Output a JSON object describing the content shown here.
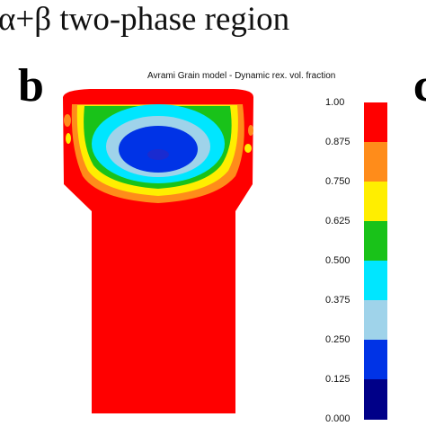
{
  "heading": "α+β two-phase region",
  "panel_label": "b",
  "next_panel_label": "c",
  "model_title": "Avrami Grain model - Dynamic rex. vol. fraction",
  "legend": {
    "ticks": [
      "1.00",
      "0.875",
      "0.750",
      "0.625",
      "0.500",
      "0.375",
      "0.250",
      "0.125",
      "0.000"
    ],
    "bands": [
      {
        "from": 0.875,
        "to": 1.0,
        "color": "#ff0000"
      },
      {
        "from": 0.75,
        "to": 0.875,
        "color": "#ff8c1a"
      },
      {
        "from": 0.625,
        "to": 0.75,
        "color": "#ffee00"
      },
      {
        "from": 0.5,
        "to": 0.625,
        "color": "#19c219"
      },
      {
        "from": 0.375,
        "to": 0.5,
        "color": "#00e6ff"
      },
      {
        "from": 0.25,
        "to": 0.375,
        "color": "#9fd3ea"
      },
      {
        "from": 0.125,
        "to": 0.25,
        "color": "#0033e6"
      },
      {
        "from": 0.0,
        "to": 0.125,
        "color": "#000088"
      }
    ]
  }
}
